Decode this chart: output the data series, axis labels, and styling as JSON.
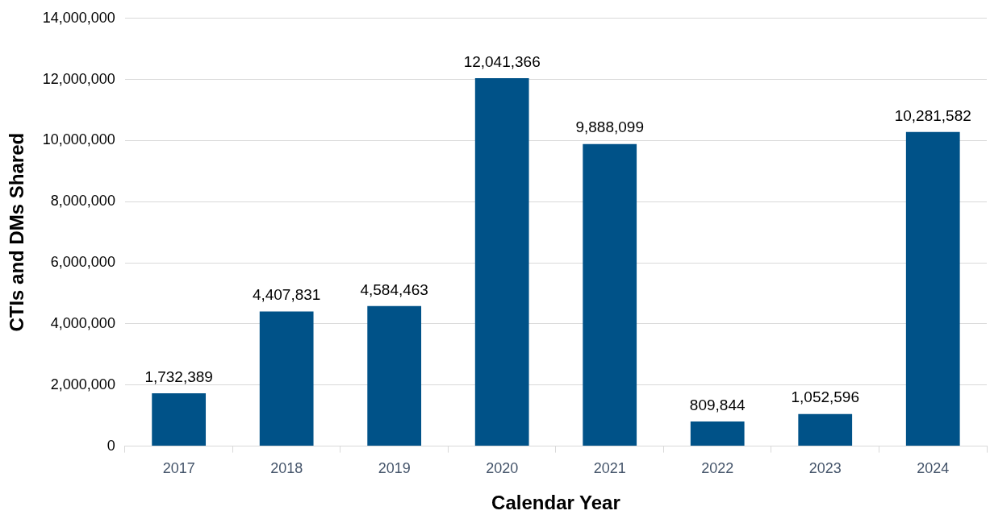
{
  "chart_data": {
    "type": "bar",
    "xlabel": "Calendar Year",
    "ylabel": "CTIs and DMs Shared",
    "categories": [
      "2017",
      "2018",
      "2019",
      "2020",
      "2021",
      "2022",
      "2023",
      "2024"
    ],
    "values": [
      1732389,
      4407831,
      4584463,
      12041366,
      9888099,
      809844,
      1052596,
      10281582
    ],
    "color": "#005288",
    "ylim": [
      0,
      14000000
    ],
    "yticks": [
      {
        "value": 0,
        "label": "0"
      },
      {
        "value": 2000000,
        "label": "2,000,000"
      },
      {
        "value": 4000000,
        "label": "4,000,000"
      },
      {
        "value": 6000000,
        "label": "6,000,000"
      },
      {
        "value": 8000000,
        "label": "8,000,000"
      },
      {
        "value": 10000000,
        "label": "10,000,000"
      },
      {
        "value": 12000000,
        "label": "12,000,000"
      },
      {
        "value": 14000000,
        "label": "14,000,000"
      }
    ],
    "value_labels": [
      "1,732,389",
      "4,407,831",
      "4,584,463",
      "12,041,366",
      "9,888,099",
      "809,844",
      "1,052,596",
      "10,281,582"
    ],
    "grid": "y"
  }
}
